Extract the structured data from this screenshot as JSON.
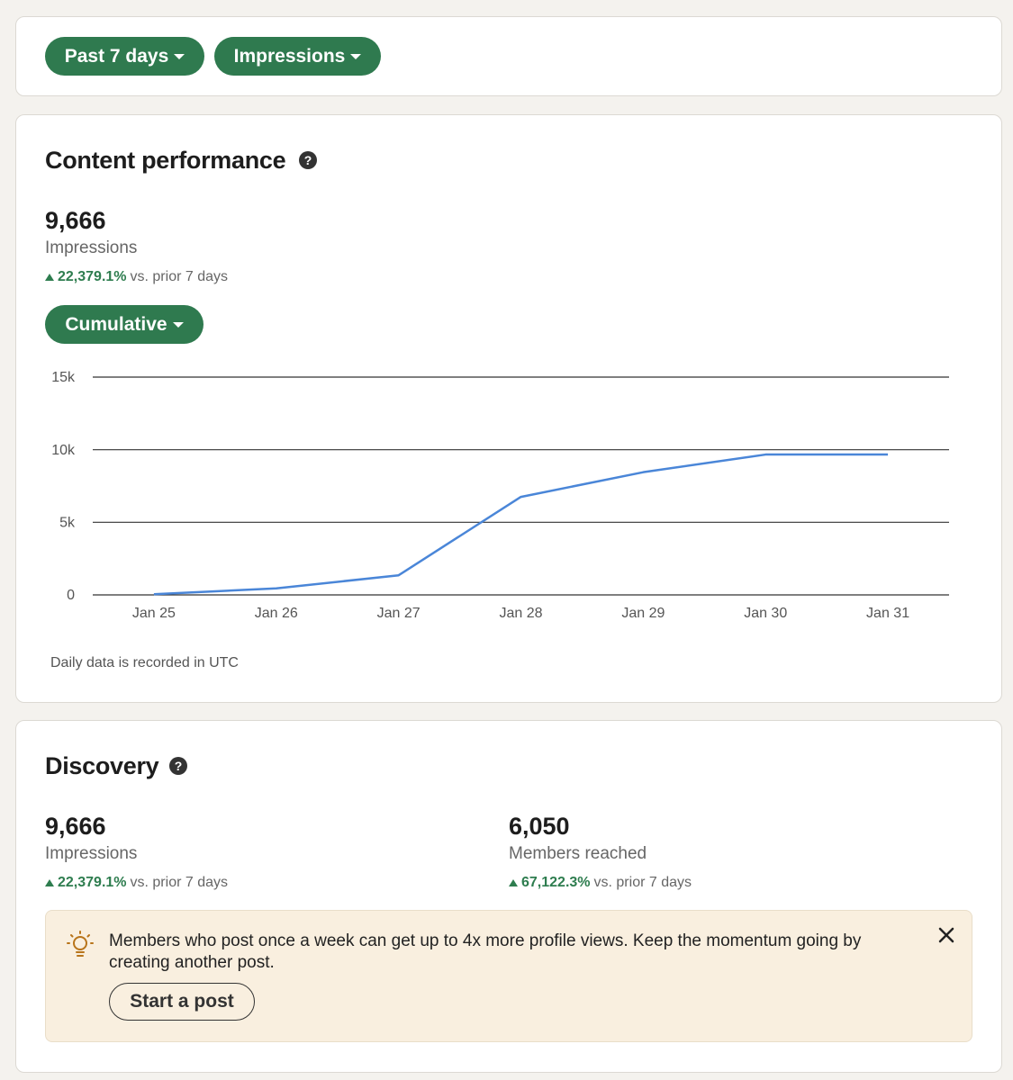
{
  "filters": [
    "Past 7 days",
    "Impressions"
  ],
  "content_performance": {
    "title": "Content performance",
    "value": "9,666",
    "metric": "Impressions",
    "change": "22,379.1%",
    "change_suffix": "vs. prior 7 days",
    "view": "Cumulative",
    "footnote": "Daily data is recorded in UTC"
  },
  "chart_data": {
    "type": "line",
    "categories": [
      "Jan 25",
      "Jan 26",
      "Jan 27",
      "Jan 28",
      "Jan 29",
      "Jan 30",
      "Jan 31"
    ],
    "values": [
      50,
      450,
      1350,
      6750,
      8450,
      9666,
      9666
    ],
    "color": "#4a86d8",
    "ylim": [
      0,
      15000
    ],
    "yticks": [
      0,
      {
        "value": 5000,
        "label": "5k"
      },
      {
        "value": 10000,
        "label": "10k"
      },
      {
        "value": 15000,
        "label": "15k"
      }
    ],
    "grid": true
  },
  "discovery": {
    "title": "Discovery",
    "stats": [
      {
        "value": "9,666",
        "label": "Impressions",
        "change": "22,379.1%",
        "change_suffix": "vs. prior 7 days"
      },
      {
        "value": "6,050",
        "label": "Members reached",
        "change": "67,122.3%",
        "change_suffix": "vs. prior 7 days"
      }
    ]
  },
  "notice": {
    "text": "Members who post once a week can get up to 4x more profile views. Keep the momentum going by creating another post.",
    "button": "Start a post"
  }
}
